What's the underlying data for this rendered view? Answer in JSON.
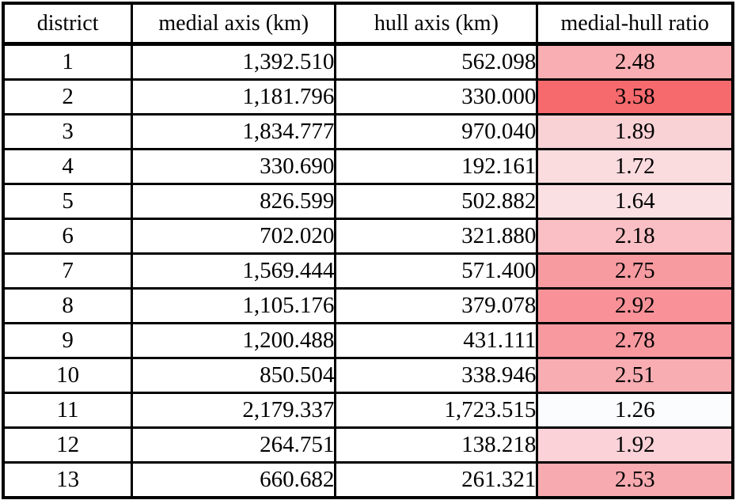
{
  "chart_data": {
    "type": "table",
    "title": "",
    "columns": [
      "district",
      "medial axis (km)",
      "hull axis (km)",
      "medial-hull ratio"
    ],
    "rows": [
      {
        "district": "1",
        "medial_axis_km": "1,392.510",
        "hull_axis_km": "562.098",
        "ratio": "2.48",
        "ratio_cell_color": "#f8aeb2"
      },
      {
        "district": "2",
        "medial_axis_km": "1,181.796",
        "hull_axis_km": "330.000",
        "ratio": "3.58",
        "ratio_cell_color": "#f66a6e"
      },
      {
        "district": "3",
        "medial_axis_km": "1,834.777",
        "hull_axis_km": "970.040",
        "ratio": "1.89",
        "ratio_cell_color": "#f9d2d6"
      },
      {
        "district": "4",
        "medial_axis_km": "330.690",
        "hull_axis_km": "192.161",
        "ratio": "1.72",
        "ratio_cell_color": "#fadbde"
      },
      {
        "district": "5",
        "medial_axis_km": "826.599",
        "hull_axis_km": "502.882",
        "ratio": "1.64",
        "ratio_cell_color": "#fbe0e3"
      },
      {
        "district": "6",
        "medial_axis_km": "702.020",
        "hull_axis_km": "321.880",
        "ratio": "2.18",
        "ratio_cell_color": "#f9bfc4"
      },
      {
        "district": "7",
        "medial_axis_km": "1,569.444",
        "hull_axis_km": "571.400",
        "ratio": "2.75",
        "ratio_cell_color": "#f79ba1"
      },
      {
        "district": "8",
        "medial_axis_km": "1,105.176",
        "hull_axis_km": "379.078",
        "ratio": "2.92",
        "ratio_cell_color": "#f89298"
      },
      {
        "district": "9",
        "medial_axis_km": "1,200.488",
        "hull_axis_km": "431.111",
        "ratio": "2.78",
        "ratio_cell_color": "#f899a0"
      },
      {
        "district": "10",
        "medial_axis_km": "850.504",
        "hull_axis_km": "338.946",
        "ratio": "2.51",
        "ratio_cell_color": "#f8adb2"
      },
      {
        "district": "11",
        "medial_axis_km": "2,179.337",
        "hull_axis_km": "1,723.515",
        "ratio": "1.26",
        "ratio_cell_color": "#fbfcfe"
      },
      {
        "district": "12",
        "medial_axis_km": "264.751",
        "hull_axis_km": "138.218",
        "ratio": "1.92",
        "ratio_cell_color": "#fad2d7"
      },
      {
        "district": "13",
        "medial_axis_km": "660.682",
        "hull_axis_km": "261.321",
        "ratio": "2.53",
        "ratio_cell_color": "#f7abb0"
      }
    ],
    "layout_hints": {
      "heatmap_column": "medial-hull ratio",
      "heatmap_scale_min_value": 1.26,
      "heatmap_scale_max_value": 3.58,
      "heatmap_scale_min_color": "#fbfcfe",
      "heatmap_scale_max_color": "#f66a6e",
      "border_color": "#000000",
      "alignment": {
        "district": "center",
        "medial_axis_km": "right",
        "hull_axis_km": "right",
        "ratio": "center"
      }
    }
  }
}
